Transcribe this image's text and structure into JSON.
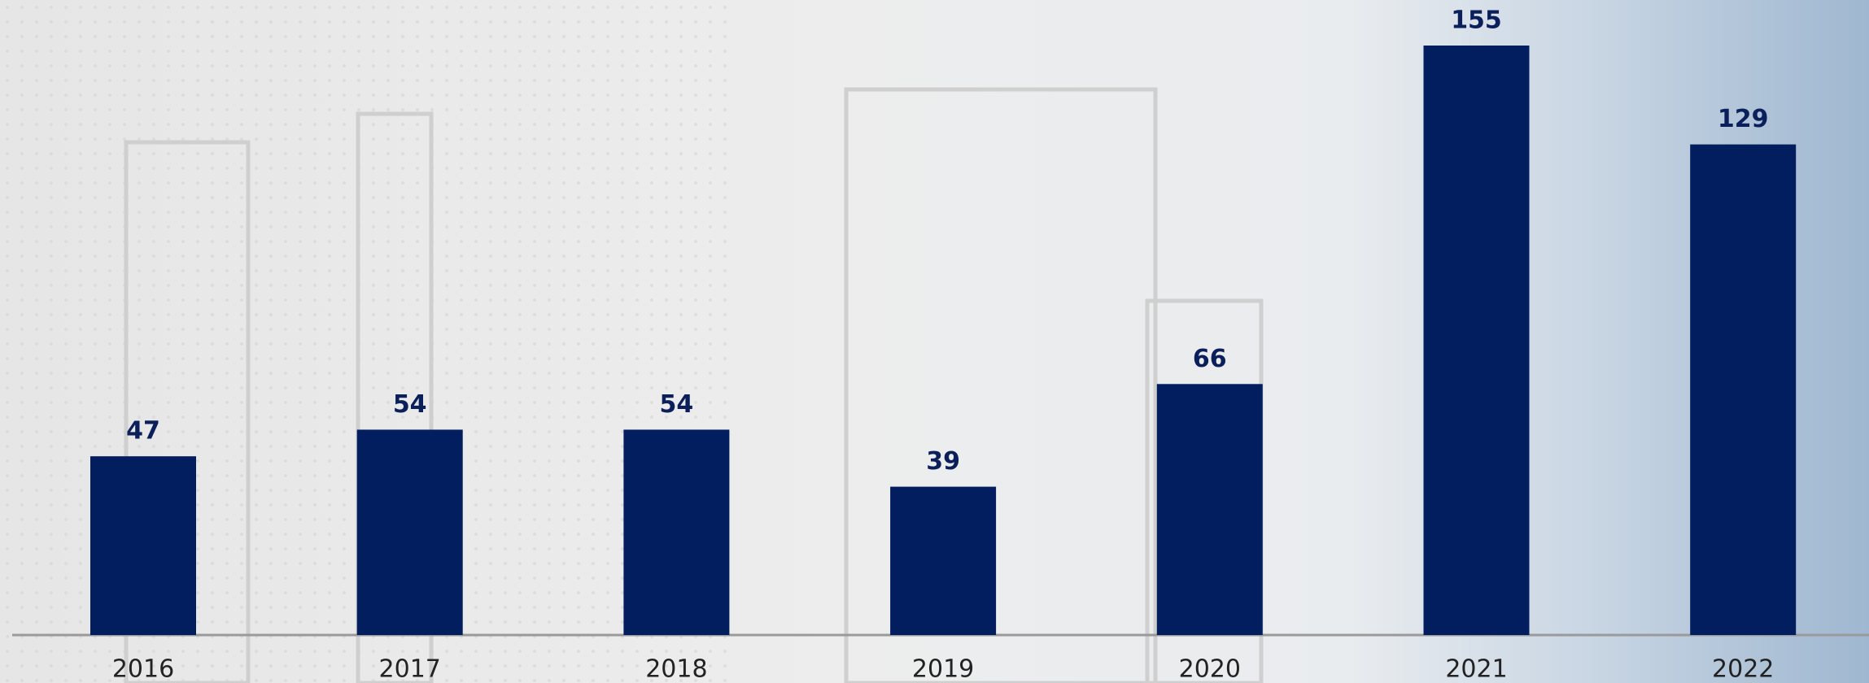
{
  "chart_data": {
    "type": "bar",
    "categories": [
      "2016",
      "2017",
      "2018",
      "2019",
      "2020",
      "2021",
      "2022"
    ],
    "values": [
      47,
      54,
      54,
      39,
      66,
      155,
      129
    ],
    "color": "#021e5f"
  }
}
